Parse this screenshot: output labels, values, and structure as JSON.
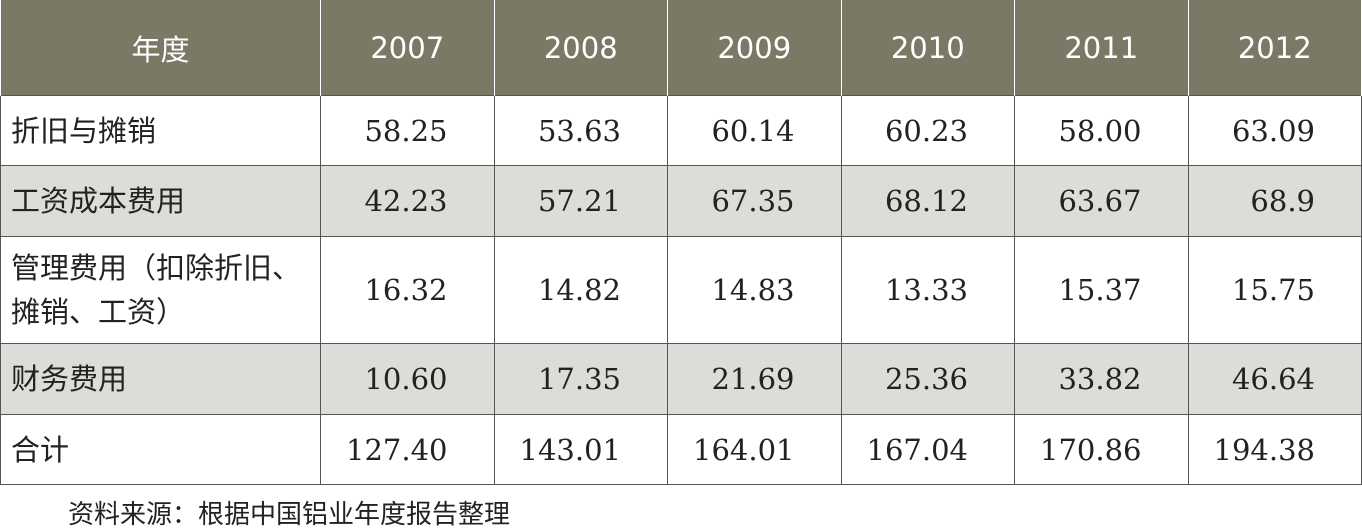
{
  "table": {
    "header": [
      "年度",
      "2007",
      "2008",
      "2009",
      "2010",
      "2011",
      "2012"
    ],
    "rows": [
      [
        "折旧与摊销",
        "58.25",
        "53.63",
        "60.14",
        "60.23",
        "58.00",
        "63.09"
      ],
      [
        "工资成本费用",
        "42.23",
        "57.21",
        "67.35",
        "68.12",
        "63.67",
        "68.9"
      ],
      [
        "管理费用（扣除折旧、摊销、工资）",
        "16.32",
        "14.82",
        "14.83",
        "13.33",
        "15.37",
        "15.75"
      ],
      [
        "财务费用",
        "10.60",
        "17.35",
        "21.69",
        "25.36",
        "33.82",
        "46.64"
      ],
      [
        "合计",
        "127.40",
        "143.01",
        "164.01",
        "167.04",
        "170.86",
        "194.38"
      ]
    ]
  },
  "source": "资料来源：根据中国铝业年度报告整理"
}
